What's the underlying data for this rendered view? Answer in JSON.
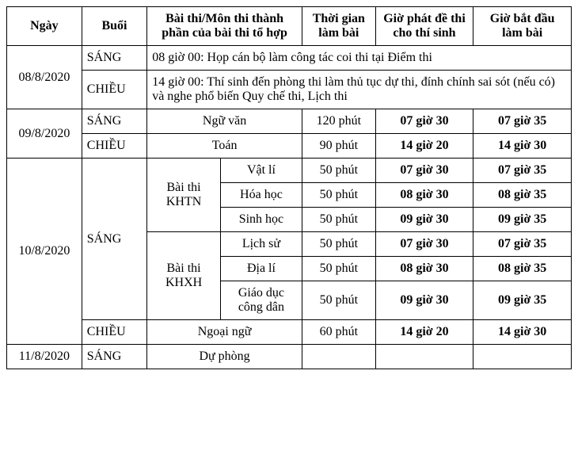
{
  "headers": {
    "ngay": "Ngày",
    "buoi": "Buổi",
    "mon": "Bài thi/Môn thi thành phần của bài thi tổ hợp",
    "thoigian": "Thời gian làm bài",
    "giophat": "Giờ phát đề thi cho thí sinh",
    "giobatdau": "Giờ bắt đầu làm bài"
  },
  "sessions": {
    "sang": "SÁNG",
    "chieu": "CHIỀU"
  },
  "dates": {
    "d1": "08/8/2020",
    "d2": "09/8/2020",
    "d3": "10/8/2020",
    "d4": "11/8/2020"
  },
  "notes": {
    "n1": "08 giờ 00: Họp cán bộ làm công tác coi thi tại Điểm thi",
    "n2": "14 giờ 00: Thí sinh đến phòng thi làm thủ tục dự thi, đính chính sai sót (nếu có) và nghe phổ biến Quy chế thi, Lịch thi"
  },
  "combos": {
    "khtn": "Bài thi KHTN",
    "khxh": "Bài thi KHXH"
  },
  "subjects": {
    "nguvan": "Ngữ văn",
    "toan": "Toán",
    "vatli": "Vật lí",
    "hoahoc": "Hóa học",
    "sinhhoc": "Sinh học",
    "lichsu": "Lịch sử",
    "diali": "Địa lí",
    "gdcd": "Giáo dục công dân",
    "ngoaingu": "Ngoại ngữ",
    "duphong": "Dự phòng"
  },
  "durations": {
    "p120": "120 phút",
    "p90": "90 phút",
    "p50": "50 phút",
    "p60": "60 phút"
  },
  "times": {
    "t0730": "07 giờ 30",
    "t0735": "07 giờ 35",
    "t1420": "14 giờ 20",
    "t1430": "14 giờ 30",
    "t0830": "08 giờ 30",
    "t0835": "08 giờ 35",
    "t0930": "09 giờ 30",
    "t0935": "09 giờ 35"
  },
  "style": {
    "border_color": "#000000",
    "background": "#ffffff",
    "font_family": "Times New Roman",
    "font_size_pt": 12,
    "bold_weight": 700
  }
}
